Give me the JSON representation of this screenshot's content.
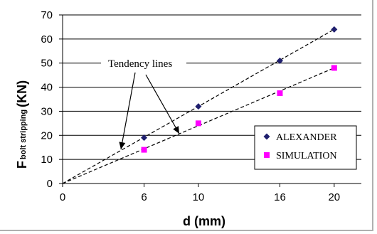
{
  "chart_data": {
    "type": "scatter",
    "xlabel": "d (mm)",
    "ylabel_main": "F",
    "ylabel_sub": "bolt stripping",
    "ylabel_unit": "(KN)",
    "xlim": [
      0,
      22
    ],
    "ylim": [
      0,
      70
    ],
    "x_ticks": [
      0,
      6,
      10,
      16,
      20
    ],
    "y_ticks": [
      0,
      10,
      20,
      30,
      40,
      50,
      60,
      70
    ],
    "grid": "horizontal",
    "legend_position": "bottom-right",
    "annotation": "Tendency lines",
    "series": [
      {
        "name": "ALEXANDER",
        "marker": "diamond",
        "color": "#1f1f6e",
        "x": [
          6,
          10,
          16,
          20
        ],
        "y": [
          19,
          32,
          51,
          64
        ],
        "trend": {
          "slope": 3.2
        }
      },
      {
        "name": "SIMULATION",
        "marker": "square",
        "color": "#ff00ff",
        "x": [
          6,
          10,
          16,
          20
        ],
        "y": [
          14,
          25,
          37.5,
          48
        ],
        "trend": {
          "slope": 2.4
        }
      }
    ]
  }
}
